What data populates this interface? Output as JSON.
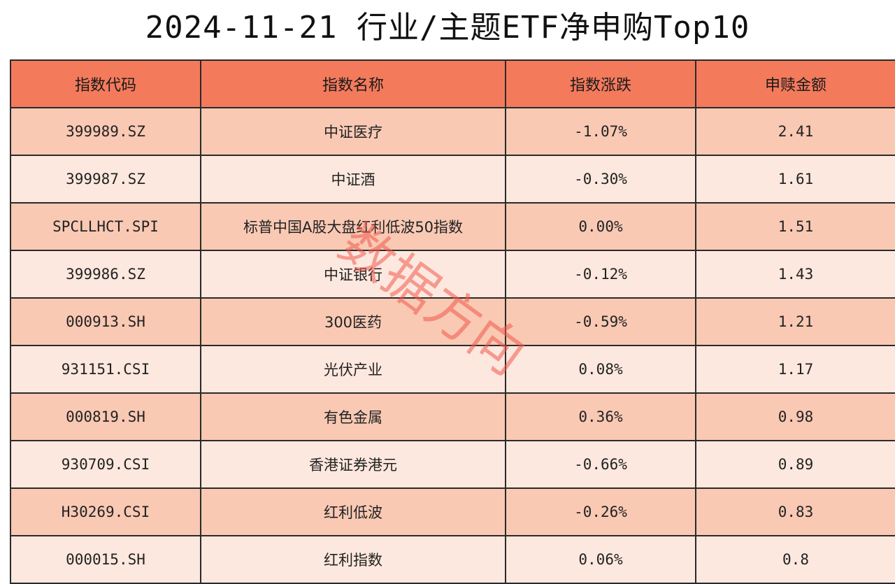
{
  "title": "2024-11-21 行业/主题ETF净申购Top10",
  "table": {
    "headers": [
      "指数代码",
      "指数名称",
      "指数涨跌",
      "申赎金额"
    ],
    "rows": [
      {
        "code": "399989.SZ",
        "name": "中证医疗",
        "change": "-1.07%",
        "amount": "2.41"
      },
      {
        "code": "399987.SZ",
        "name": "中证酒",
        "change": "-0.30%",
        "amount": "1.61"
      },
      {
        "code": "SPCLLHCT.SPI",
        "name": "标普中国A股大盘红利低波50指数",
        "change": "0.00%",
        "amount": "1.51"
      },
      {
        "code": "399986.SZ",
        "name": "中证银行",
        "change": "-0.12%",
        "amount": "1.43"
      },
      {
        "code": "000913.SH",
        "name": "300医药",
        "change": "-0.59%",
        "amount": "1.21"
      },
      {
        "code": "931151.CSI",
        "name": "光伏产业",
        "change": "0.08%",
        "amount": "1.17"
      },
      {
        "code": "000819.SH",
        "name": "有色金属",
        "change": "0.36%",
        "amount": "0.98"
      },
      {
        "code": "930709.CSI",
        "name": "香港证券港元",
        "change": "-0.66%",
        "amount": "0.89"
      },
      {
        "code": "H30269.CSI",
        "name": "红利低波",
        "change": "-0.26%",
        "amount": "0.83"
      },
      {
        "code": "000015.SH",
        "name": "红利指数",
        "change": "0.06%",
        "amount": "0.8"
      }
    ]
  },
  "watermark": {
    "text": "数据方向",
    "color": "#f0584a"
  },
  "colors": {
    "header_bg": "#f47a5c",
    "row_odd_bg": "#f9c9b4",
    "row_even_bg": "#fde8df"
  }
}
